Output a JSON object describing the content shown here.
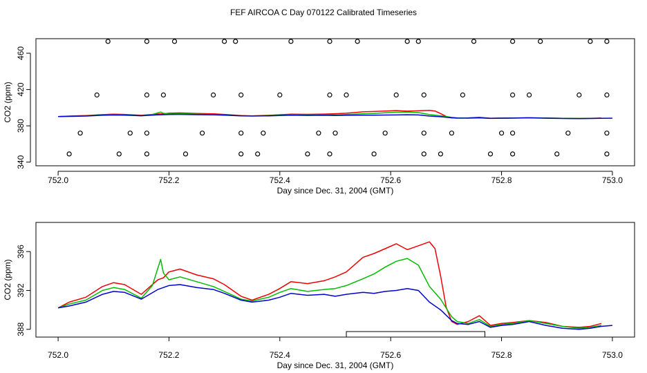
{
  "chart_data": {
    "title": "FEF AIRCOA C  Day 070122  Calibrated Timeseries",
    "series_colors": {
      "red": "#ee0000",
      "green": "#00bb00",
      "blue": "#0000cc"
    },
    "panels": [
      {
        "id": "top",
        "type": "line+scatter",
        "xlabel": "Day since Dec. 31, 2004 (GMT)",
        "ylabel": "CO2 (ppm)",
        "xlim": [
          751.96,
          753.04
        ],
        "ylim": [
          336,
          476
        ],
        "x_ticks": [
          "752.0",
          "752.2",
          "752.4",
          "752.6",
          "752.8",
          "753.0"
        ],
        "y_ticks": [
          "340",
          "380",
          "420",
          "460"
        ],
        "calibration_points": {
          "marker": "open-circle",
          "groups": [
            {
              "y": 473,
              "x": [
                752.09,
                752.16,
                752.21,
                752.3,
                752.32,
                752.42,
                752.49,
                752.54,
                752.63,
                752.65,
                752.75,
                752.82,
                752.87,
                752.96,
                752.99
              ]
            },
            {
              "y": 414,
              "x": [
                752.07,
                752.16,
                752.19,
                752.28,
                752.33,
                752.4,
                752.49,
                752.52,
                752.61,
                752.66,
                752.73,
                752.82,
                752.85,
                752.94,
                752.99
              ]
            },
            {
              "y": 372,
              "x": [
                752.04,
                752.13,
                752.16,
                752.26,
                752.33,
                752.37,
                752.47,
                752.5,
                752.59,
                752.66,
                752.71,
                752.8,
                752.82,
                752.92,
                752.99
              ]
            },
            {
              "y": 349,
              "x": [
                752.02,
                752.11,
                752.16,
                752.23,
                752.33,
                752.36,
                752.45,
                752.49,
                752.57,
                752.66,
                752.69,
                752.78,
                752.82,
                752.9,
                752.99
              ]
            }
          ]
        }
      },
      {
        "id": "bottom",
        "type": "line",
        "xlabel": "Day since Dec. 31, 2004 (GMT)",
        "ylabel": "CO2 (ppm)",
        "xlim": [
          751.96,
          753.04
        ],
        "ylim": [
          387.2,
          399.0
        ],
        "x_ticks": [
          "752.0",
          "752.2",
          "752.4",
          "752.6",
          "752.8",
          "753.0"
        ],
        "y_ticks": [
          "388",
          "392",
          "396"
        ],
        "bracket": {
          "x_start": 752.52,
          "x_end": 752.77
        }
      }
    ],
    "series": [
      {
        "name": "red",
        "x": [
          752.0,
          752.02,
          752.05,
          752.08,
          752.1,
          752.12,
          752.15,
          752.18,
          752.19,
          752.2,
          752.22,
          752.25,
          752.28,
          752.3,
          752.33,
          752.35,
          752.38,
          752.4,
          752.42,
          752.45,
          752.48,
          752.5,
          752.52,
          752.55,
          752.57,
          752.59,
          752.61,
          752.63,
          752.65,
          752.67,
          752.68,
          752.69,
          752.7,
          752.71,
          752.72,
          752.74,
          752.76,
          752.78,
          752.8,
          752.82,
          752.85,
          752.88,
          752.91,
          752.94,
          752.96,
          752.98
        ],
        "y": [
          390.2,
          390.8,
          391.3,
          392.4,
          392.8,
          392.6,
          391.6,
          393.1,
          393.3,
          393.9,
          394.2,
          393.6,
          393.2,
          392.6,
          391.4,
          391.0,
          391.6,
          392.2,
          392.9,
          392.7,
          393.0,
          393.4,
          393.9,
          395.4,
          395.8,
          396.3,
          396.8,
          396.2,
          396.6,
          397.0,
          396.3,
          393.5,
          390.3,
          388.8,
          388.5,
          388.8,
          389.4,
          388.4,
          388.6,
          388.7,
          388.9,
          388.7,
          388.3,
          388.2,
          388.3,
          388.6
        ]
      },
      {
        "name": "green",
        "x": [
          752.0,
          752.02,
          752.05,
          752.08,
          752.1,
          752.12,
          752.15,
          752.17,
          752.185,
          752.19,
          752.2,
          752.22,
          752.25,
          752.28,
          752.3,
          752.33,
          752.35,
          752.38,
          752.4,
          752.42,
          752.45,
          752.48,
          752.5,
          752.52,
          752.55,
          752.57,
          752.59,
          752.61,
          752.63,
          752.65,
          752.67,
          752.69,
          752.71,
          752.72,
          752.74,
          752.76,
          752.78,
          752.8,
          752.82,
          752.85,
          752.88,
          752.91,
          752.94,
          752.96,
          752.98
        ],
        "y": [
          390.2,
          390.6,
          391.0,
          392.0,
          392.3,
          392.1,
          391.2,
          392.5,
          395.2,
          393.8,
          393.1,
          393.4,
          392.9,
          392.4,
          391.9,
          391.1,
          390.9,
          391.3,
          391.8,
          392.2,
          391.9,
          392.1,
          392.2,
          392.5,
          393.2,
          393.7,
          394.4,
          395.0,
          395.3,
          394.6,
          392.4,
          391.1,
          389.3,
          388.8,
          388.6,
          389.0,
          388.3,
          388.5,
          388.6,
          388.9,
          388.6,
          388.3,
          388.1,
          388.2,
          388.4
        ]
      },
      {
        "name": "blue",
        "x": [
          752.0,
          752.02,
          752.05,
          752.08,
          752.1,
          752.12,
          752.15,
          752.18,
          752.2,
          752.22,
          752.25,
          752.28,
          752.3,
          752.33,
          752.35,
          752.38,
          752.4,
          752.42,
          752.45,
          752.48,
          752.5,
          752.52,
          752.55,
          752.57,
          752.59,
          752.61,
          752.63,
          752.65,
          752.67,
          752.69,
          752.71,
          752.72,
          752.74,
          752.76,
          752.78,
          752.8,
          752.82,
          752.85,
          752.88,
          752.91,
          752.94,
          752.96,
          752.98,
          753.0
        ],
        "y": [
          390.2,
          390.4,
          390.8,
          391.6,
          391.9,
          391.8,
          391.1,
          392.1,
          392.5,
          392.6,
          392.3,
          392.1,
          391.7,
          391.0,
          390.8,
          391.0,
          391.3,
          391.7,
          391.5,
          391.6,
          391.4,
          391.6,
          391.8,
          391.7,
          391.9,
          392.0,
          392.2,
          392.0,
          390.8,
          390.0,
          388.9,
          388.6,
          388.5,
          388.8,
          388.2,
          388.4,
          388.5,
          388.8,
          388.4,
          388.1,
          388.0,
          388.1,
          388.3,
          388.4
        ]
      }
    ]
  }
}
